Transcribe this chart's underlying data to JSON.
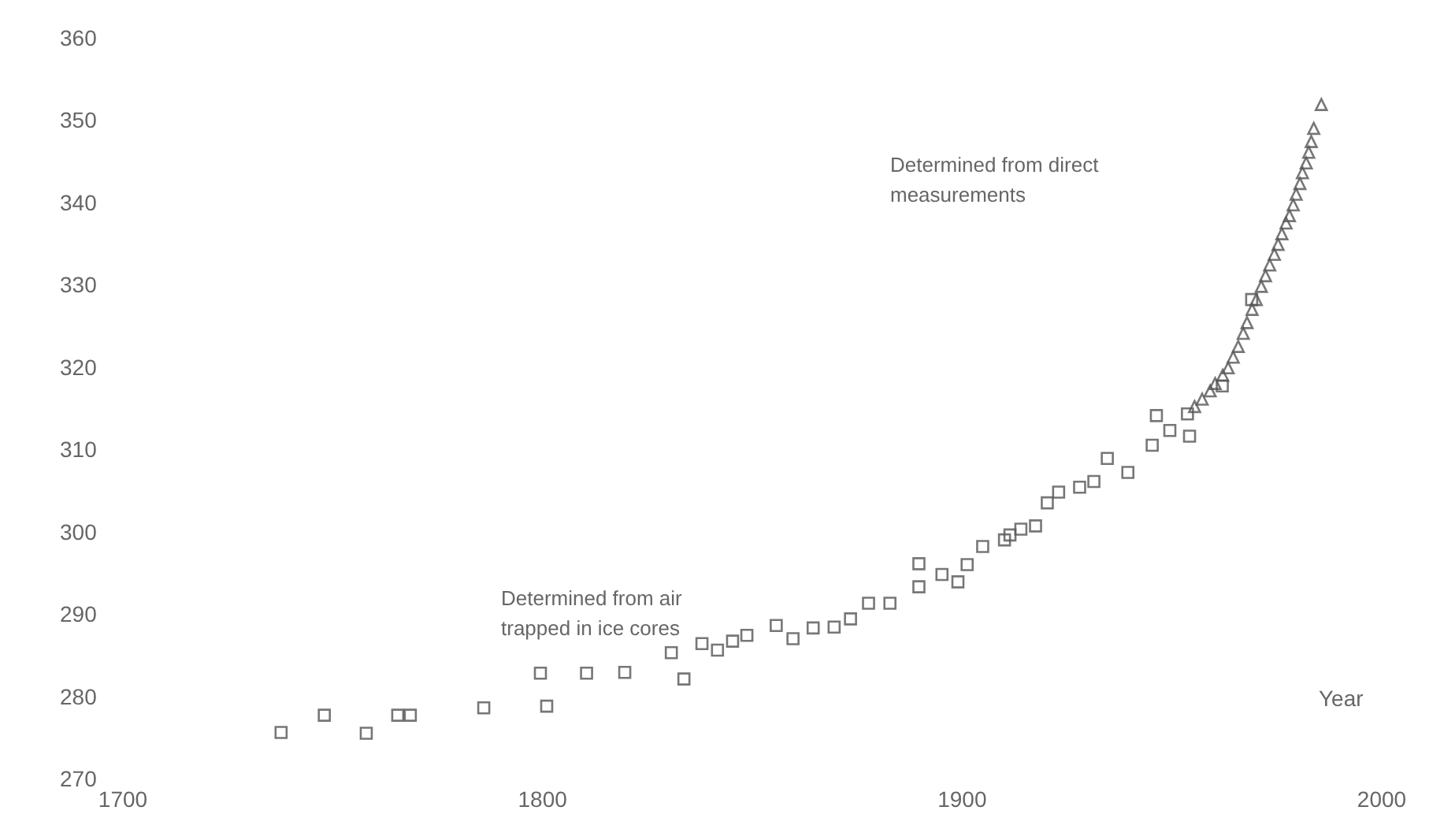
{
  "chart_data": {
    "type": "scatter",
    "xlabel": "Year",
    "xlim": [
      1700,
      2000
    ],
    "xticks": [
      1700,
      1800,
      1900,
      2000
    ],
    "ylim": [
      270,
      360
    ],
    "yticks": [
      270,
      280,
      290,
      300,
      310,
      320,
      330,
      340,
      350,
      360
    ],
    "grid": false,
    "series": [
      {
        "color": "#555555",
        "marker": "square",
        "x": [
          1737.7,
          1748,
          1758,
          1765.5,
          1768.5,
          1786,
          1799.5,
          1801,
          1810.5,
          1819.6,
          1830.7,
          1833.7,
          1838,
          1841.7,
          1845.3,
          1848.7,
          1855.7,
          1859.7,
          1864.5,
          1869.5,
          1873.4,
          1877.7,
          1882.8,
          1889.7,
          1889.7,
          1895.2,
          1899,
          1901.2,
          1904.9,
          1910.1,
          1911.4,
          1914,
          1917.5,
          1920.3,
          1923,
          1928,
          1931.4,
          1934.6,
          1939.5,
          1945.3,
          1946.3,
          1949.5,
          1953.7,
          1954.2,
          1962,
          1969
        ],
        "values": [
          275.6,
          277.7,
          275.5,
          277.7,
          277.7,
          278.6,
          282.8,
          278.8,
          282.8,
          282.9,
          285.3,
          282.1,
          286.4,
          285.6,
          286.7,
          287.4,
          288.6,
          287.0,
          288.3,
          288.4,
          289.4,
          291.3,
          291.3,
          296.1,
          293.3,
          294.8,
          293.9,
          296.0,
          298.2,
          299.0,
          299.6,
          300.3,
          300.7,
          303.5,
          304.8,
          305.4,
          306.1,
          308.9,
          307.2,
          310.5,
          314.1,
          312.3,
          314.3,
          311.6,
          317.7,
          328.2
        ]
      },
      {
        "color": "#555555",
        "marker": "triangle",
        "x": [
          1955.4,
          1957.2,
          1959.1,
          1960.3,
          1962.1,
          1963.4,
          1964.6,
          1965.8,
          1967.0,
          1967.9,
          1969.1,
          1970.1,
          1971.3,
          1972.3,
          1973.3,
          1974.4,
          1975.3,
          1976.2,
          1977.2,
          1978.0,
          1978.9,
          1979.6,
          1980.5,
          1981.1,
          1982.0,
          1982.6,
          1983.2,
          1983.8,
          1985.6
        ],
        "values": [
          315.2,
          316.1,
          317.1,
          318.0,
          319.0,
          319.9,
          321.2,
          322.5,
          324.1,
          325.4,
          327.0,
          328.2,
          329.8,
          331.1,
          332.4,
          333.7,
          334.9,
          336.2,
          337.5,
          338.4,
          339.7,
          341.0,
          342.3,
          343.6,
          344.8,
          346.1,
          347.4,
          349.0,
          351.9
        ]
      }
    ],
    "annotations": [
      "Determined from direct\nmeasurements",
      "Determined from air\ntrapped in ice cores"
    ]
  }
}
